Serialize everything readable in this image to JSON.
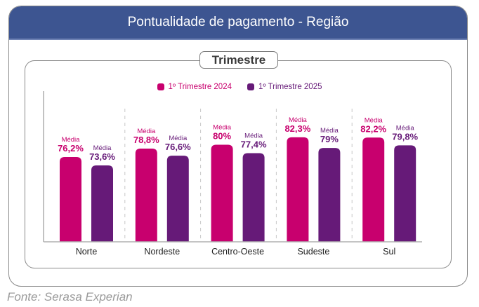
{
  "header": {
    "title": "Pontualidade de pagamento - Região"
  },
  "section_label": "Trimestre",
  "footer": {
    "source": "Fonte: Serasa Experian"
  },
  "chart_data": {
    "type": "bar",
    "title": "Pontualidade de pagamento - Região",
    "subtitle": "Trimestre",
    "xlabel": "",
    "ylabel": "",
    "categories": [
      "Norte",
      "Nordeste",
      "Centro-Oeste",
      "Sudeste",
      "Sul"
    ],
    "series": [
      {
        "name": "1º Trimestre 2024",
        "color": "#c8006e",
        "values": [
          76.2,
          78.8,
          80,
          82.3,
          82.2
        ],
        "labels": [
          "76,2%",
          "78,8%",
          "80%",
          "82,3%",
          "82,2%"
        ]
      },
      {
        "name": "1º Trimestre 2025",
        "color": "#661a78",
        "values": [
          73.6,
          76.6,
          77.4,
          79,
          79.8
        ],
        "labels": [
          "73,6%",
          "76,6%",
          "77,4%",
          "79%",
          "79,8%"
        ]
      }
    ],
    "data_label_prefix": "Média",
    "ylim": [
      50,
      100
    ],
    "grid": false,
    "legend_position": "top-center",
    "unit": "%"
  }
}
